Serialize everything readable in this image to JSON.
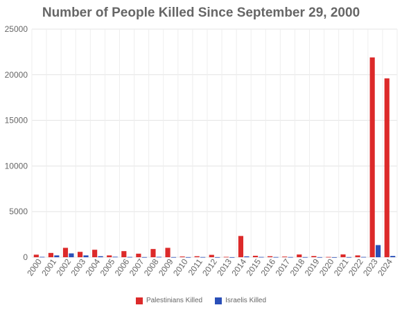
{
  "chart_data": {
    "type": "bar",
    "title": "Number of People Killed Since September 29, 2000",
    "xlabel": "",
    "ylabel": "",
    "ylim": [
      0,
      25000
    ],
    "yticks": [
      0,
      5000,
      10000,
      15000,
      20000,
      25000
    ],
    "grid": true,
    "legend_position": "bottom",
    "categories": [
      "2000",
      "2001",
      "2002",
      "2003",
      "2004",
      "2005",
      "2006",
      "2007",
      "2008",
      "2009",
      "2010",
      "2011",
      "2012",
      "2013",
      "2014",
      "2015",
      "2016",
      "2017",
      "2018",
      "2019",
      "2020",
      "2021",
      "2022",
      "2023",
      "2024"
    ],
    "series": [
      {
        "name": "Palestinians Killed",
        "color": "#dc2a2a",
        "values": [
          280,
          470,
          1030,
          590,
          820,
          200,
          670,
          390,
          900,
          1030,
          80,
          110,
          260,
          40,
          2330,
          160,
          110,
          70,
          300,
          130,
          30,
          310,
          200,
          21900,
          19600
        ]
      },
      {
        "name": "Israelis Killed",
        "color": "#2a4fb8",
        "values": [
          40,
          200,
          420,
          200,
          110,
          50,
          30,
          15,
          40,
          15,
          10,
          20,
          10,
          5,
          90,
          30,
          20,
          20,
          15,
          10,
          5,
          15,
          30,
          1330,
          140
        ]
      }
    ]
  }
}
